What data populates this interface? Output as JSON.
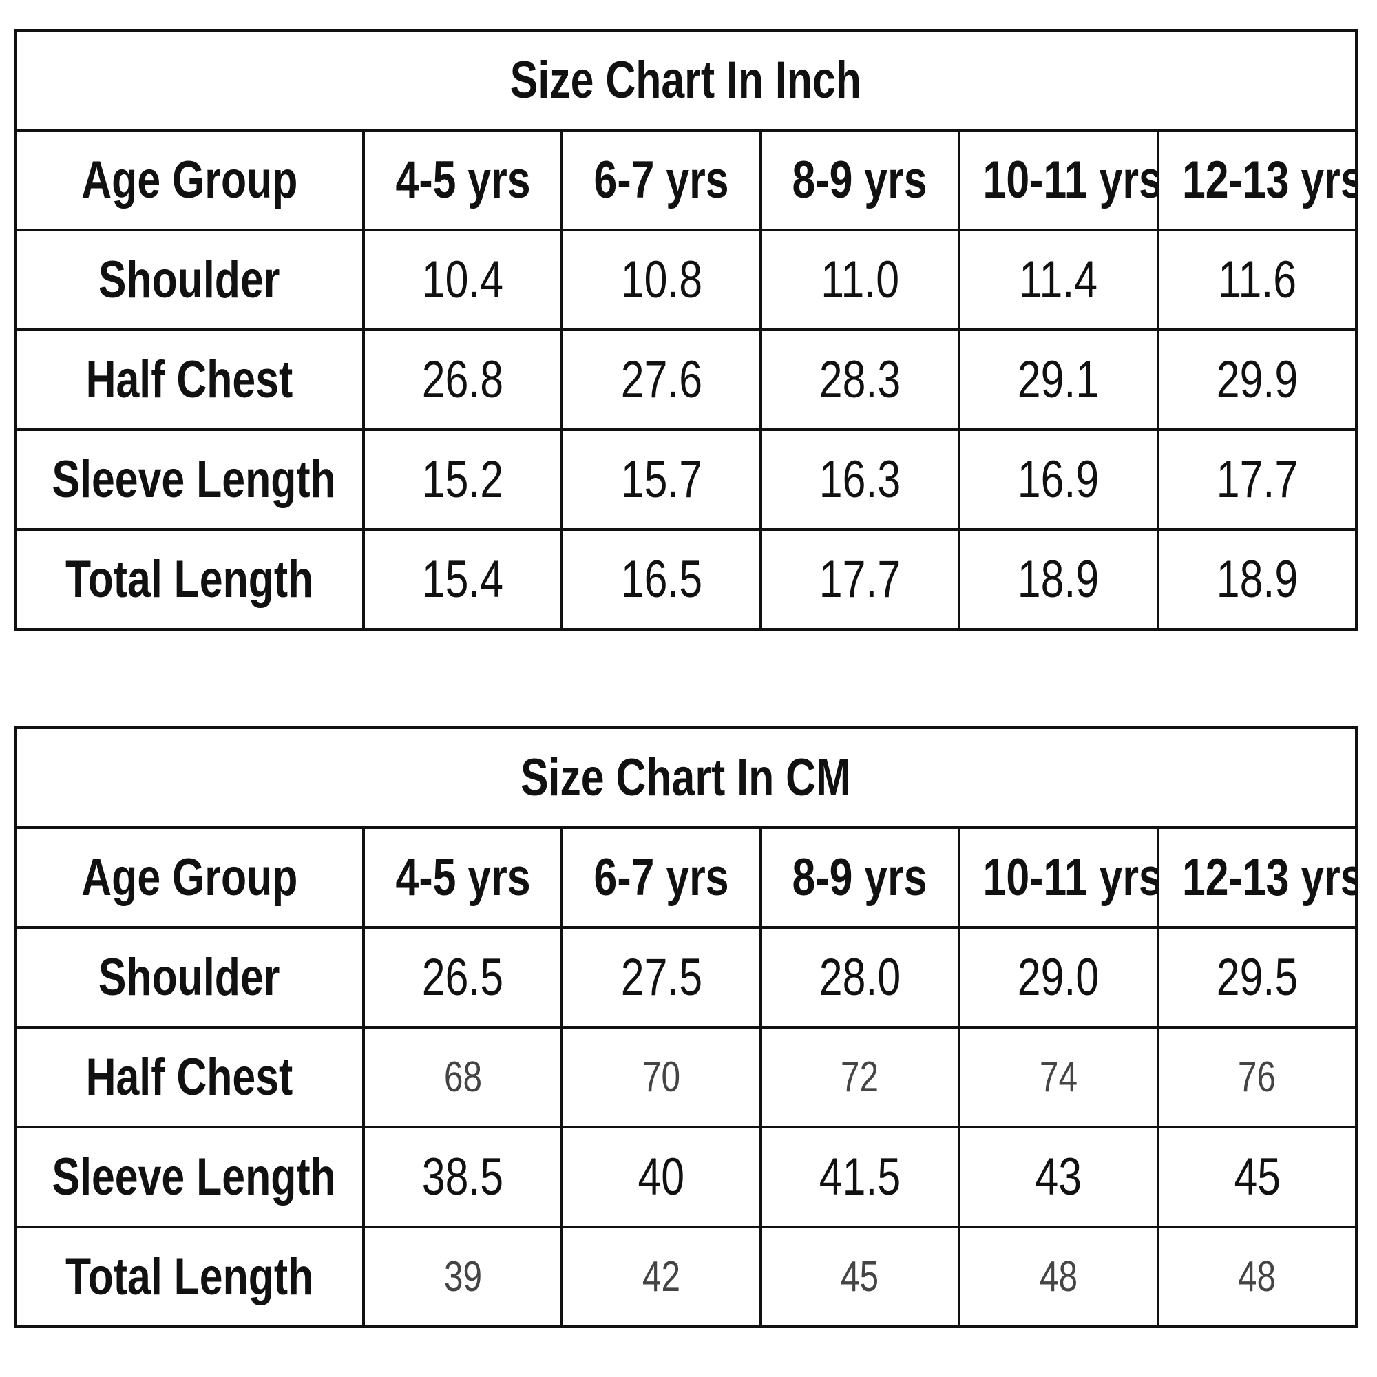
{
  "tables": [
    {
      "title": "Size Chart In Inch",
      "header": [
        "Age Group",
        "4-5 yrs",
        "6-7 yrs",
        "8-9 yrs",
        "10-11 yrs",
        "12-13 yrs"
      ],
      "rows": [
        [
          "Shoulder",
          "10.4",
          "10.8",
          "11.0",
          "11.4",
          "11.6"
        ],
        [
          "Half Chest",
          "26.8",
          "27.6",
          "28.3",
          "29.1",
          "29.9"
        ],
        [
          "Sleeve Length",
          "15.2",
          "15.7",
          "16.3",
          "16.9",
          "17.7"
        ],
        [
          "Total Length",
          "15.4",
          "16.5",
          "17.7",
          "18.9",
          "18.9"
        ]
      ]
    },
    {
      "title": "Size Chart In CM",
      "header": [
        "Age Group",
        "4-5 yrs",
        "6-7 yrs",
        "8-9 yrs",
        "10-11 yrs",
        "12-13 yrs"
      ],
      "rows": [
        [
          "Shoulder",
          "26.5",
          "27.5",
          "28.0",
          "29.0",
          "29.5"
        ],
        [
          "Half Chest",
          "68",
          "70",
          "72",
          "74",
          "76"
        ],
        [
          "Sleeve Length",
          "38.5",
          "40",
          "41.5",
          "43",
          "45"
        ],
        [
          "Total Length",
          "39",
          "42",
          "45",
          "48",
          "48"
        ]
      ]
    }
  ]
}
